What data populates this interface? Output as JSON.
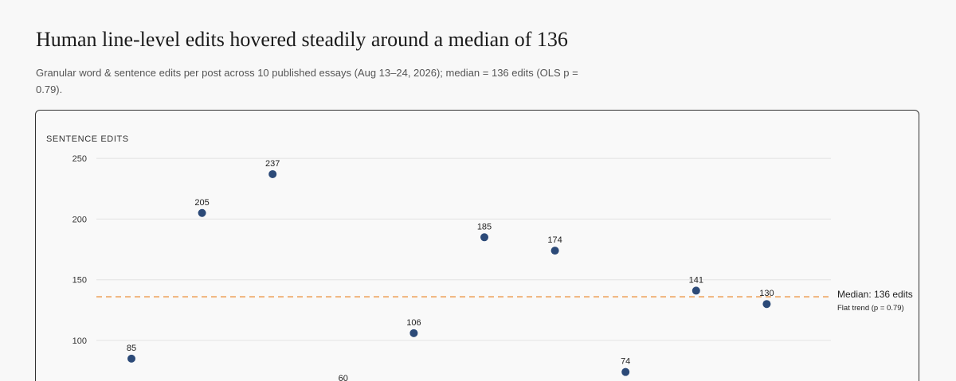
{
  "title": "Human line-level edits hovered steadily around a median of 136",
  "subtitle": "Granular word & sentence edits per post across 10 published essays (Aug 13–24, 2026); median = 136 edits (OLS p = 0.79).",
  "chart_data": {
    "type": "scatter",
    "title": "Human line-level edits hovered steadily around a median of 136",
    "ylabel": "SENTENCE EDITS",
    "xlabel": "",
    "y_ticks": [
      100,
      150,
      200,
      250
    ],
    "ylim": [
      40,
      255
    ],
    "grid": true,
    "x": [
      1,
      2,
      3,
      4,
      5,
      6,
      7,
      8,
      9,
      10
    ],
    "values": [
      85,
      205,
      237,
      60,
      106,
      185,
      174,
      74,
      141,
      130
    ],
    "data_labels": [
      "85",
      "205",
      "237",
      "60",
      "106",
      "185",
      "174",
      "74",
      "141",
      "130"
    ],
    "median": 136,
    "median_label": "Median: 136 edits",
    "trend_label": "Flat trend (p = 0.79)",
    "colors": {
      "point": "#2c4a78",
      "median_line": "#f0b37a"
    }
  }
}
